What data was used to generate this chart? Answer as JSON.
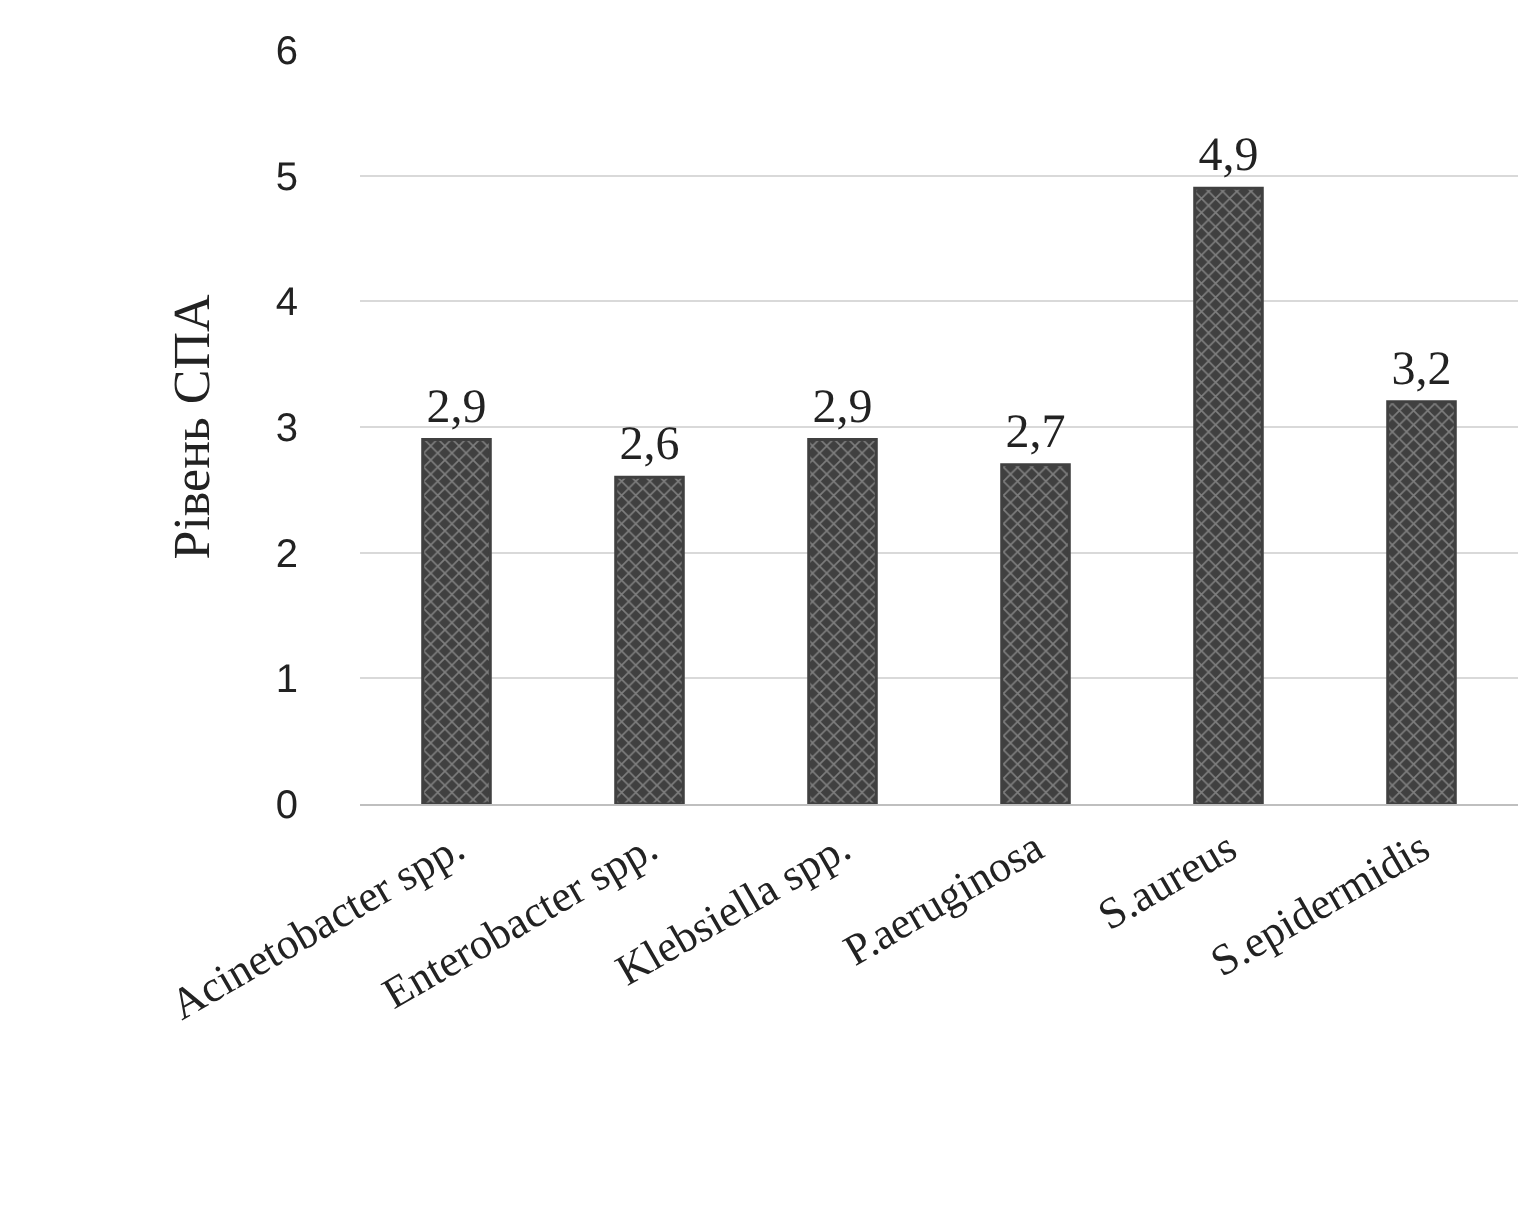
{
  "chart_data": {
    "type": "bar",
    "ylabel": "Рівень СПА",
    "categories": [
      "Acinetobacter spp.",
      "Enterobacter spp.",
      "Klebsiella spp.",
      "P.aeruginosa",
      "S.aureus",
      "S.epidermidis"
    ],
    "values": [
      2.9,
      2.6,
      2.9,
      2.7,
      4.9,
      3.2
    ],
    "value_labels": [
      "2,9",
      "2,6",
      "2,9",
      "2,7",
      "4,9",
      "3,2"
    ],
    "color": "#404040",
    "ylim": [
      0,
      6
    ],
    "yticks": [
      0,
      1,
      2,
      3,
      4,
      5,
      6
    ],
    "grid": "y"
  }
}
